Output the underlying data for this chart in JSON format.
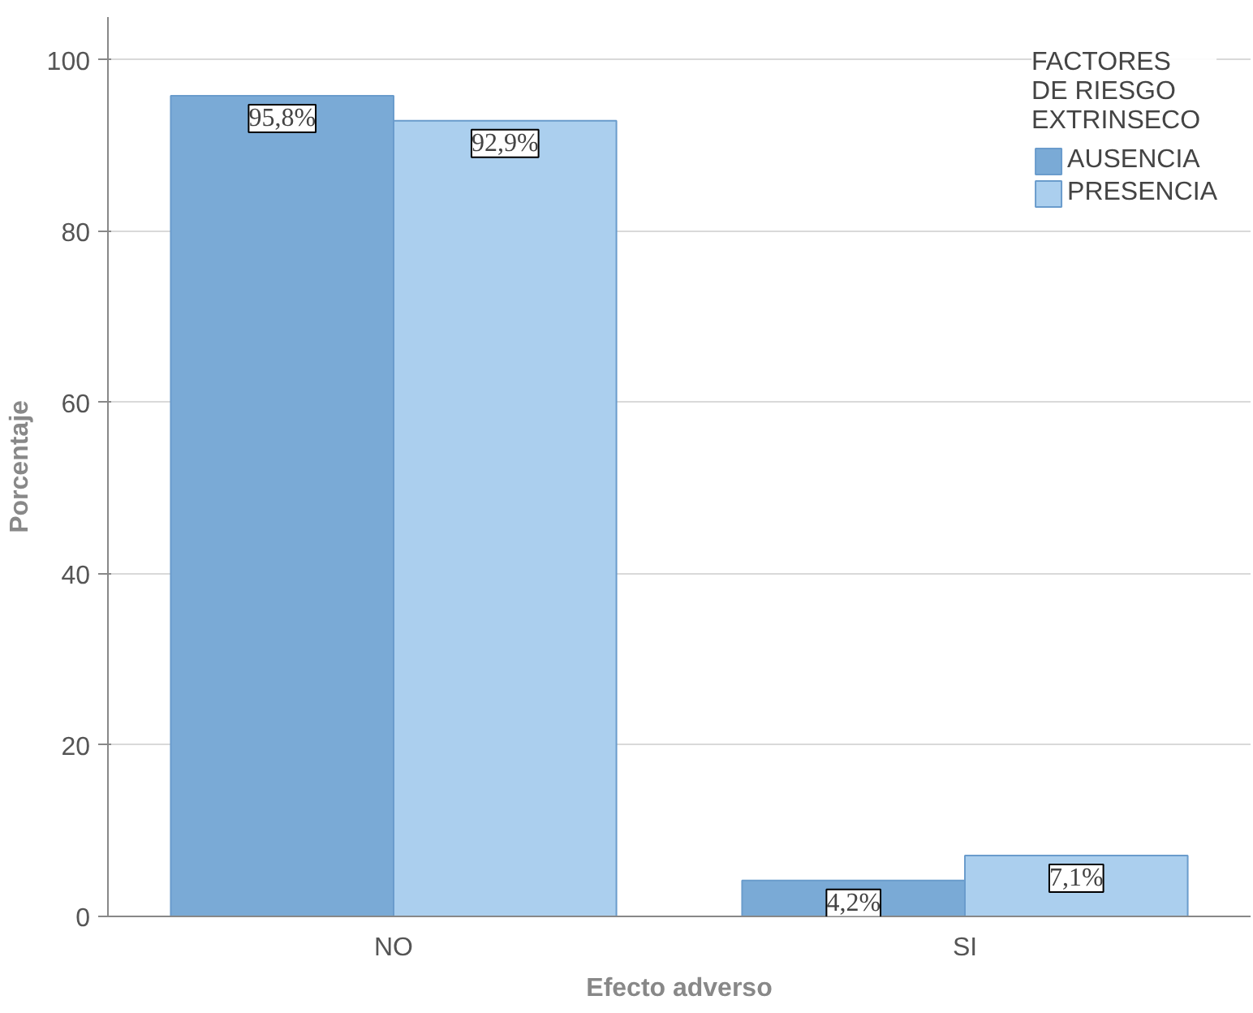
{
  "chart_data": {
    "type": "bar",
    "xlabel": "Efecto adverso",
    "ylabel": "Porcentaje",
    "legend_title": "FACTORES\nDE RIESGO\nEXTRINSECO",
    "categories": [
      "NO",
      "SI"
    ],
    "series": [
      {
        "name": "AUSENCIA",
        "color": "#7aaad6",
        "values": [
          95.8,
          4.2
        ],
        "value_labels": [
          "95,8%",
          "4,2%"
        ]
      },
      {
        "name": "PRESENCIA",
        "color": "#abcfee",
        "values": [
          92.9,
          7.1
        ],
        "value_labels": [
          "92,9%",
          "7,1%"
        ]
      }
    ],
    "ylim": [
      0,
      105
    ],
    "yticks": [
      0,
      20,
      40,
      60,
      80,
      100
    ],
    "grid": "y",
    "legend": "top right"
  }
}
